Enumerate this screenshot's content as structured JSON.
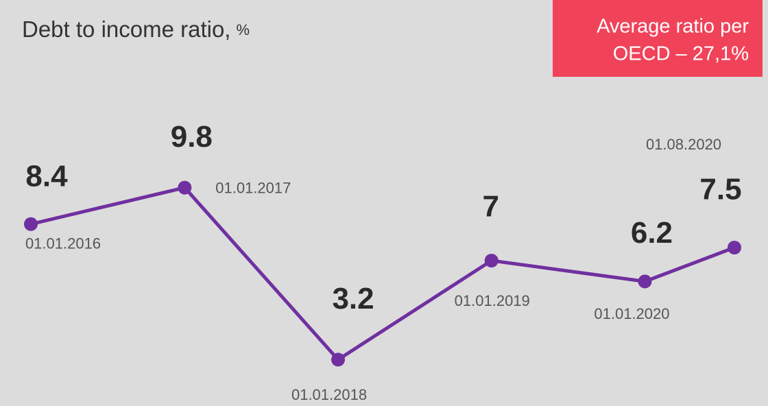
{
  "chart_data": {
    "type": "line",
    "title": "Debt to income ratio,",
    "title_unit": "%",
    "annotation": [
      "Average ratio per",
      "OECD – 27,1%"
    ],
    "x": [
      "01.01.2016",
      "01.01.2017",
      "01.01.2018",
      "01.01.2019",
      "01.01.2020",
      "01.08.2020"
    ],
    "series": [
      {
        "name": "Debt to income ratio",
        "color": "#7030a0",
        "values": [
          8.4,
          9.8,
          3.2,
          7,
          6.2,
          7.5
        ]
      }
    ],
    "ylim": [
      2,
      10
    ]
  }
}
